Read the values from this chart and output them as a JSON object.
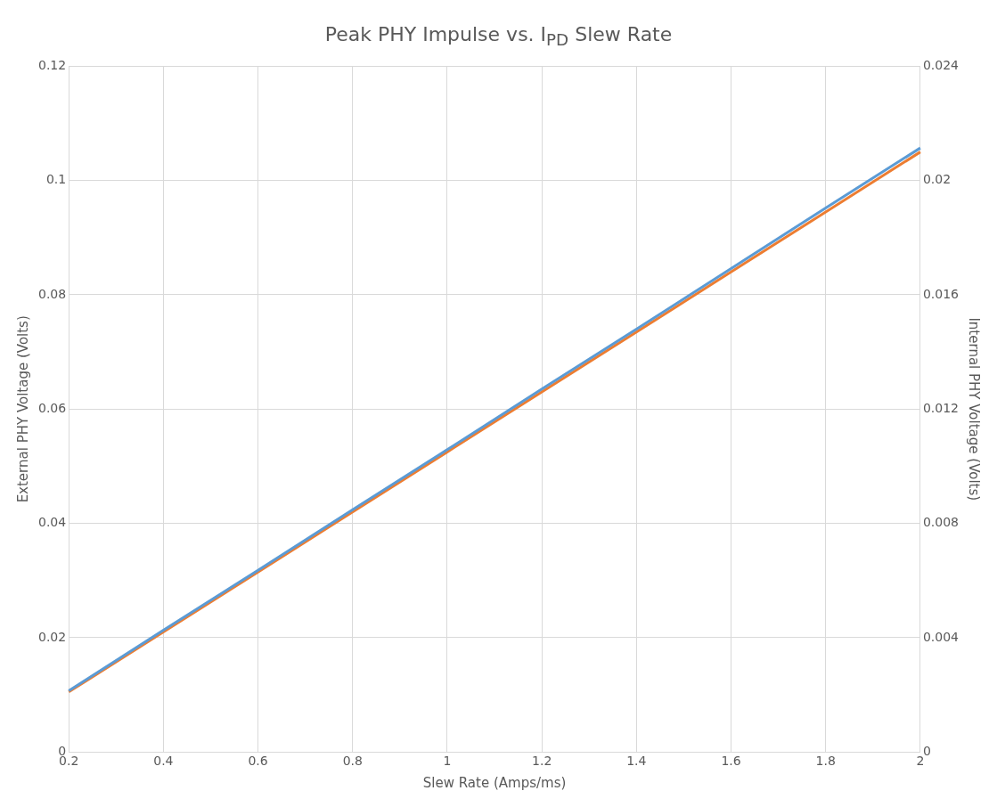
{
  "chart_data": {
    "type": "line",
    "title": "Peak PHY Impulse vs. I$_{PD}$ Slew Rate",
    "xlabel": "Slew Rate (Amps/ms)",
    "ylabel": "External PHY Voltage (Volts)",
    "y2label": "Internal PHY Voltage (Volts)",
    "x": [
      0.2,
      0.4,
      0.6,
      0.8,
      1,
      1.2,
      1.4,
      1.6,
      1.8,
      2
    ],
    "series": [
      {
        "color": "#5b9bd5",
        "values": [
          0.0107,
          0.0213,
          0.0318,
          0.0424,
          0.0529,
          0.0635,
          0.074,
          0.0846,
          0.0952,
          0.1057
        ]
      },
      {
        "color": "#ed7d31",
        "values": [
          0.0021,
          0.0042,
          0.0063,
          0.0084,
          0.0105,
          0.0126,
          0.0147,
          0.0168,
          0.0189,
          0.021
        ],
        "axis": "y2"
      }
    ],
    "xlim": [
      0.2,
      2
    ],
    "xticks": [
      0.2,
      0.4,
      0.6,
      0.8,
      1,
      1.2,
      1.4,
      1.6,
      1.8,
      2
    ],
    "ylim": [
      0,
      0.12
    ],
    "yticks": [
      0,
      0.02,
      0.04,
      0.06,
      0.08,
      0.1,
      0.12
    ],
    "y2lim": [
      0,
      0.024
    ],
    "y2ticks": [
      0,
      0.004,
      0.008,
      0.012,
      0.016,
      0.02,
      0.024
    ],
    "grid": true,
    "legend": false,
    "marker": "none",
    "line_style": "solid"
  }
}
